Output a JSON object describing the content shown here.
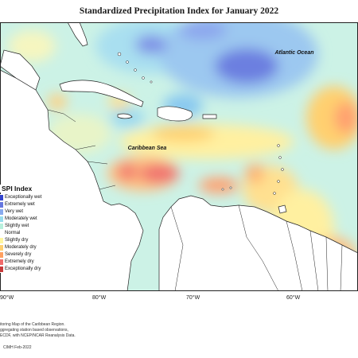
{
  "title": "Standardized Precipitation Index for January 2022",
  "map_labels": {
    "atlantic": "Atlantic Ocean",
    "caribbean": "Caribbean Sea"
  },
  "legend": {
    "title": "SPI Index",
    "items": [
      {
        "label": "Exceptionally wet",
        "color": "#3344cc"
      },
      {
        "label": "Extremely wet",
        "color": "#6677e0"
      },
      {
        "label": "Very wet",
        "color": "#88aaee"
      },
      {
        "label": "Moderately wet",
        "color": "#99ddee"
      },
      {
        "label": "Slightly wet",
        "color": "#b8f0dd"
      },
      {
        "label": "Normal",
        "color": "#ffffff"
      },
      {
        "label": "Slightly dry",
        "color": "#fff6a0"
      },
      {
        "label": "Moderately dry",
        "color": "#ffd070"
      },
      {
        "label": "Severely dry",
        "color": "#ffa060"
      },
      {
        "label": "Extremely dry",
        "color": "#f06a6a"
      },
      {
        "label": "Exceptionally dry",
        "color": "#c83a3a"
      }
    ]
  },
  "longitudes": [
    "90°W",
    "80°W",
    "70°W",
    "60°W"
  ],
  "footnotes": [
    "itoring Map of the Caribbean Region.",
    "ggregating station based observations,",
    "ECDF, with NCEP/NCAR Reanalysis Data."
  ],
  "credit": "CIMH Feb-2022",
  "colors": {
    "land": "#ffffff",
    "border": "#222222"
  }
}
